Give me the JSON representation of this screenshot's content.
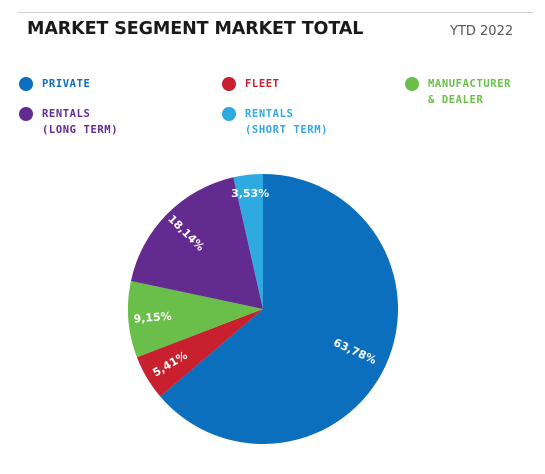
{
  "header": {
    "title": "MARKET SEGMENT MARKET TOTAL",
    "period": "YTD 2022"
  },
  "legend": [
    {
      "lines": [
        "PRIVATE"
      ],
      "color": "#0b6fbe"
    },
    {
      "lines": [
        "FLEET"
      ],
      "color": "#c8202f"
    },
    {
      "lines": [
        "MANUFACTURER",
        "& DEALER"
      ],
      "color": "#69bf4a"
    },
    {
      "lines": [
        "RENTALS",
        "(LONG TERM)"
      ],
      "color": "#632a8f"
    },
    {
      "lines": [
        "RENTALS",
        "(SHORT TERM)"
      ],
      "color": "#2eaae1"
    }
  ],
  "chart_data": {
    "type": "pie",
    "title": "MARKET SEGMENT MARKET TOTAL",
    "slices": [
      {
        "name": "PRIVATE",
        "value": 63.78,
        "label": "63,78%",
        "color": "#0b6fbe"
      },
      {
        "name": "FLEET",
        "value": 5.41,
        "label": "5,41%",
        "color": "#c8202f"
      },
      {
        "name": "MANUFACTURER & DEALER",
        "value": 9.15,
        "label": "9,15%",
        "color": "#69bf4a"
      },
      {
        "name": "RENTALS (LONG TERM)",
        "value": 18.14,
        "label": "18,14%",
        "color": "#632a8f"
      },
      {
        "name": "RENTALS (SHORT TERM)",
        "value": 3.53,
        "label": "3,53%",
        "color": "#2eaae1"
      }
    ]
  }
}
